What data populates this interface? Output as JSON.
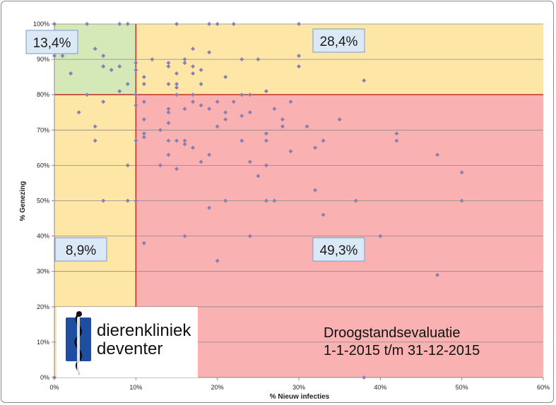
{
  "chart_data": {
    "type": "scatter",
    "title": "",
    "xlabel": "% Nieuw infecties",
    "ylabel": "% Genezing",
    "xlim": [
      0,
      60
    ],
    "ylim": [
      0,
      100
    ],
    "x_ticks": [
      "0%",
      "10%",
      "20%",
      "30%",
      "40%",
      "50%",
      "60%"
    ],
    "y_ticks": [
      "0%",
      "10%",
      "20%",
      "30%",
      "40%",
      "50%",
      "60%",
      "70%",
      "80%",
      "90%",
      "100%"
    ],
    "grid": "horizontal",
    "thresholds": {
      "x": 10,
      "y": 80
    },
    "zone_colors": {
      "top_left": "#d4e8b8",
      "top_right": "#fde6a6",
      "bottom_left": "#fde6a6",
      "bottom_right": "#f9b1b1"
    },
    "point_color": "#8a7fb2",
    "threshold_color": "#c0392b",
    "quadrant_labels": [
      {
        "position": "top-left",
        "text": "13,4%"
      },
      {
        "position": "top-right",
        "text": "28,4%"
      },
      {
        "position": "bottom-left",
        "text": "8,9%"
      },
      {
        "position": "bottom-right",
        "text": "49,3%"
      }
    ],
    "points": [
      [
        0,
        100
      ],
      [
        4,
        100
      ],
      [
        8,
        100
      ],
      [
        9,
        100
      ],
      [
        15,
        100
      ],
      [
        19,
        100
      ],
      [
        20,
        100
      ],
      [
        22,
        100
      ],
      [
        30,
        100
      ],
      [
        0,
        91
      ],
      [
        1,
        91
      ],
      [
        2,
        86
      ],
      [
        5,
        93
      ],
      [
        6,
        91
      ],
      [
        6,
        88
      ],
      [
        7,
        87
      ],
      [
        8,
        88
      ],
      [
        8,
        81
      ],
      [
        9,
        83
      ],
      [
        10,
        89
      ],
      [
        10,
        87
      ],
      [
        11,
        85
      ],
      [
        11,
        83
      ],
      [
        12,
        90
      ],
      [
        14,
        89
      ],
      [
        14,
        88
      ],
      [
        14,
        83
      ],
      [
        15,
        86
      ],
      [
        15,
        83
      ],
      [
        15,
        82
      ],
      [
        16,
        90
      ],
      [
        16,
        89
      ],
      [
        17,
        93
      ],
      [
        17,
        88
      ],
      [
        17,
        86
      ],
      [
        17,
        80
      ],
      [
        18,
        87
      ],
      [
        18,
        83
      ],
      [
        19,
        92
      ],
      [
        21,
        85
      ],
      [
        23,
        90
      ],
      [
        25,
        90
      ],
      [
        26,
        81
      ],
      [
        30,
        91
      ],
      [
        30,
        88
      ],
      [
        38,
        84
      ],
      [
        3,
        75
      ],
      [
        4,
        80
      ],
      [
        5,
        71
      ],
      [
        5,
        67
      ],
      [
        6,
        78
      ],
      [
        6,
        50
      ],
      [
        9,
        60
      ],
      [
        9,
        50
      ],
      [
        10,
        77
      ],
      [
        10,
        67
      ],
      [
        10,
        50
      ],
      [
        10,
        80
      ],
      [
        11,
        78
      ],
      [
        11,
        73
      ],
      [
        11,
        69
      ],
      [
        11,
        68
      ],
      [
        11,
        38
      ],
      [
        13,
        70
      ],
      [
        13,
        60
      ],
      [
        14,
        76
      ],
      [
        14,
        75
      ],
      [
        14,
        72
      ],
      [
        14,
        67
      ],
      [
        14,
        63
      ],
      [
        15,
        80
      ],
      [
        15,
        67
      ],
      [
        15,
        59
      ],
      [
        16,
        76
      ],
      [
        16,
        67
      ],
      [
        16,
        66
      ],
      [
        16,
        40
      ],
      [
        17,
        78
      ],
      [
        17,
        65
      ],
      [
        18,
        77
      ],
      [
        18,
        61
      ],
      [
        19,
        76
      ],
      [
        19,
        63
      ],
      [
        19,
        48
      ],
      [
        20,
        78
      ],
      [
        20,
        71
      ],
      [
        20,
        33
      ],
      [
        21,
        75
      ],
      [
        21,
        73
      ],
      [
        21,
        50
      ],
      [
        22,
        78
      ],
      [
        23,
        80
      ],
      [
        23,
        74
      ],
      [
        23,
        67
      ],
      [
        24,
        80
      ],
      [
        24,
        75
      ],
      [
        24,
        61
      ],
      [
        24,
        40
      ],
      [
        25,
        57
      ],
      [
        26,
        69
      ],
      [
        26,
        67
      ],
      [
        26,
        60
      ],
      [
        26,
        50
      ],
      [
        27,
        76
      ],
      [
        27,
        50
      ],
      [
        28,
        73
      ],
      [
        28,
        71
      ],
      [
        29,
        78
      ],
      [
        29,
        64
      ],
      [
        31,
        71
      ],
      [
        32,
        65
      ],
      [
        32,
        53
      ],
      [
        33,
        67
      ],
      [
        33,
        46
      ],
      [
        35,
        73
      ],
      [
        37,
        50
      ],
      [
        38,
        0
      ],
      [
        40,
        40
      ],
      [
        42,
        69
      ],
      [
        42,
        67
      ],
      [
        47,
        63
      ],
      [
        47,
        29
      ],
      [
        50,
        58
      ],
      [
        50,
        50
      ],
      [
        0,
        0
      ]
    ]
  },
  "logo": {
    "line1": "dierenkliniek",
    "line2": "deventer",
    "brand_color": "#1f4ea0"
  },
  "annotation": {
    "line1": "Droogstandsevaluatie",
    "line2": "1-1-2015 t/m 31-12-2015"
  }
}
